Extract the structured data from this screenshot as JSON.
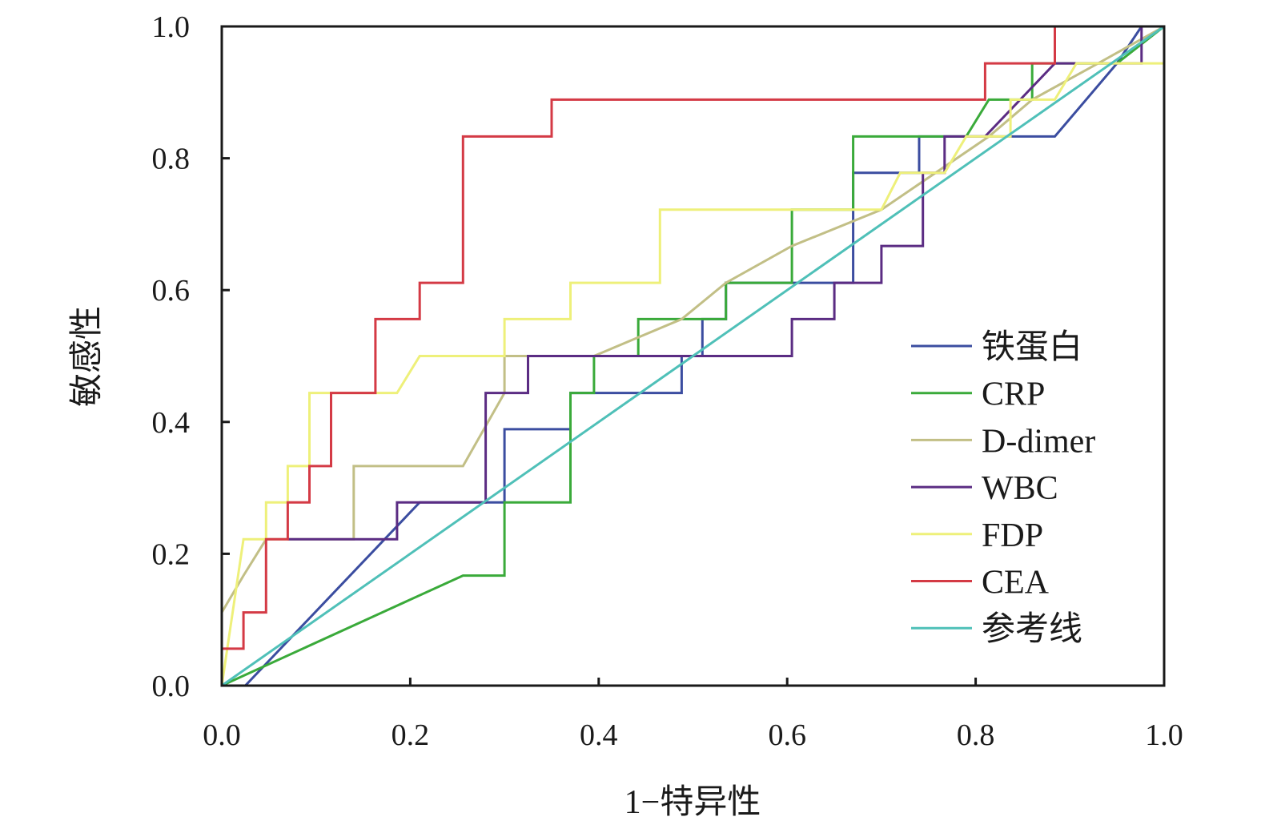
{
  "chart_data": {
    "type": "line",
    "title": "",
    "xlabel": "1−特异性",
    "ylabel": "敏感性",
    "xlim": [
      0,
      1
    ],
    "ylim": [
      0,
      1
    ],
    "xticks": [
      "0.0",
      "0.2",
      "0.4",
      "0.6",
      "0.8",
      "1.0"
    ],
    "yticks": [
      "0.0",
      "0.2",
      "0.4",
      "0.6",
      "0.8",
      "1.0"
    ],
    "grid": false,
    "legend_position": "right",
    "series": [
      {
        "name": "铁蛋白",
        "color": "#3b4da0",
        "points": [
          [
            0,
            0
          ],
          [
            0.025,
            0
          ],
          [
            0.21,
            0.278
          ],
          [
            0.3,
            0.278
          ],
          [
            0.3,
            0.389
          ],
          [
            0.37,
            0.389
          ],
          [
            0.37,
            0.444
          ],
          [
            0.488,
            0.444
          ],
          [
            0.488,
            0.5
          ],
          [
            0.51,
            0.5
          ],
          [
            0.51,
            0.556
          ],
          [
            0.535,
            0.556
          ],
          [
            0.535,
            0.611
          ],
          [
            0.67,
            0.611
          ],
          [
            0.67,
            0.778
          ],
          [
            0.74,
            0.778
          ],
          [
            0.74,
            0.833
          ],
          [
            0.884,
            0.833
          ],
          [
            0.95,
            0.944
          ],
          [
            0.976,
            1.0
          ],
          [
            1.0,
            1.0
          ]
        ]
      },
      {
        "name": "CRP",
        "color": "#3aaa3a",
        "points": [
          [
            0,
            0
          ],
          [
            0.256,
            0.167
          ],
          [
            0.3,
            0.167
          ],
          [
            0.3,
            0.278
          ],
          [
            0.37,
            0.278
          ],
          [
            0.37,
            0.444
          ],
          [
            0.395,
            0.444
          ],
          [
            0.395,
            0.5
          ],
          [
            0.442,
            0.5
          ],
          [
            0.442,
            0.556
          ],
          [
            0.535,
            0.556
          ],
          [
            0.535,
            0.611
          ],
          [
            0.605,
            0.611
          ],
          [
            0.605,
            0.722
          ],
          [
            0.67,
            0.722
          ],
          [
            0.67,
            0.833
          ],
          [
            0.79,
            0.833
          ],
          [
            0.814,
            0.889
          ],
          [
            0.86,
            0.889
          ],
          [
            0.86,
            0.944
          ],
          [
            0.93,
            0.944
          ],
          [
            0.95,
            0.944
          ],
          [
            1.0,
            1.0
          ]
        ]
      },
      {
        "name": "D-dimer",
        "color": "#c2bf86",
        "points": [
          [
            0,
            0.111
          ],
          [
            0.023,
            0.167
          ],
          [
            0.047,
            0.222
          ],
          [
            0.14,
            0.222
          ],
          [
            0.14,
            0.333
          ],
          [
            0.256,
            0.333
          ],
          [
            0.3,
            0.444
          ],
          [
            0.3,
            0.5
          ],
          [
            0.395,
            0.5
          ],
          [
            0.488,
            0.556
          ],
          [
            0.535,
            0.611
          ],
          [
            0.605,
            0.667
          ],
          [
            0.7,
            0.722
          ],
          [
            0.814,
            0.833
          ],
          [
            0.86,
            0.889
          ],
          [
            0.93,
            0.944
          ],
          [
            1.0,
            1.0
          ]
        ]
      },
      {
        "name": "WBC",
        "color": "#5b2c83",
        "points": [
          [
            0.07,
            0.222
          ],
          [
            0.186,
            0.222
          ],
          [
            0.186,
            0.278
          ],
          [
            0.28,
            0.278
          ],
          [
            0.28,
            0.444
          ],
          [
            0.325,
            0.444
          ],
          [
            0.325,
            0.5
          ],
          [
            0.605,
            0.5
          ],
          [
            0.605,
            0.556
          ],
          [
            0.65,
            0.556
          ],
          [
            0.65,
            0.611
          ],
          [
            0.7,
            0.611
          ],
          [
            0.7,
            0.667
          ],
          [
            0.744,
            0.667
          ],
          [
            0.744,
            0.778
          ],
          [
            0.767,
            0.778
          ],
          [
            0.767,
            0.833
          ],
          [
            0.81,
            0.833
          ],
          [
            0.884,
            0.944
          ],
          [
            0.976,
            0.944
          ],
          [
            0.976,
            1.0
          ],
          [
            1.0,
            1.0
          ]
        ]
      },
      {
        "name": "FDP",
        "color": "#eef07a",
        "points": [
          [
            0,
            0
          ],
          [
            0.023,
            0.222
          ],
          [
            0.047,
            0.222
          ],
          [
            0.047,
            0.278
          ],
          [
            0.07,
            0.278
          ],
          [
            0.07,
            0.333
          ],
          [
            0.093,
            0.333
          ],
          [
            0.093,
            0.444
          ],
          [
            0.186,
            0.444
          ],
          [
            0.21,
            0.5
          ],
          [
            0.3,
            0.5
          ],
          [
            0.3,
            0.556
          ],
          [
            0.37,
            0.556
          ],
          [
            0.37,
            0.611
          ],
          [
            0.465,
            0.611
          ],
          [
            0.465,
            0.722
          ],
          [
            0.7,
            0.722
          ],
          [
            0.72,
            0.778
          ],
          [
            0.767,
            0.778
          ],
          [
            0.79,
            0.833
          ],
          [
            0.837,
            0.833
          ],
          [
            0.837,
            0.889
          ],
          [
            0.884,
            0.889
          ],
          [
            0.907,
            0.944
          ],
          [
            1.0,
            0.944
          ],
          [
            1.0,
            1.0
          ]
        ]
      },
      {
        "name": "CEA",
        "color": "#d43a45",
        "points": [
          [
            0,
            0
          ],
          [
            0,
            0.056
          ],
          [
            0.023,
            0.056
          ],
          [
            0.023,
            0.111
          ],
          [
            0.047,
            0.111
          ],
          [
            0.047,
            0.222
          ],
          [
            0.07,
            0.222
          ],
          [
            0.07,
            0.278
          ],
          [
            0.093,
            0.278
          ],
          [
            0.093,
            0.333
          ],
          [
            0.116,
            0.333
          ],
          [
            0.116,
            0.444
          ],
          [
            0.163,
            0.444
          ],
          [
            0.163,
            0.556
          ],
          [
            0.21,
            0.556
          ],
          [
            0.21,
            0.611
          ],
          [
            0.256,
            0.611
          ],
          [
            0.256,
            0.833
          ],
          [
            0.35,
            0.833
          ],
          [
            0.35,
            0.889
          ],
          [
            0.81,
            0.889
          ],
          [
            0.81,
            0.944
          ],
          [
            0.884,
            0.944
          ],
          [
            0.884,
            1.0
          ],
          [
            1.0,
            1.0
          ]
        ]
      },
      {
        "name": "参考线",
        "color": "#4fc0b8",
        "points": [
          [
            0,
            0
          ],
          [
            1,
            1
          ]
        ]
      }
    ]
  }
}
